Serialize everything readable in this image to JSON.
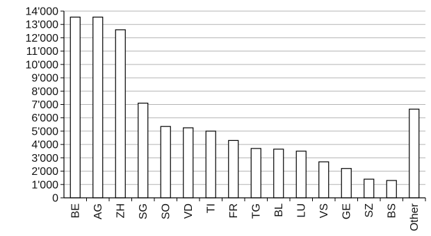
{
  "chart_data": {
    "type": "bar",
    "title": "",
    "xlabel": "",
    "ylabel": "",
    "categories": [
      "BE",
      "AG",
      "ZH",
      "SG",
      "SO",
      "VD",
      "TI",
      "FR",
      "TG",
      "BL",
      "LU",
      "VS",
      "GE",
      "SZ",
      "BS",
      "Other"
    ],
    "values": [
      13550,
      13550,
      12600,
      7100,
      5350,
      5250,
      5000,
      4300,
      3700,
      3650,
      3500,
      2700,
      2200,
      1400,
      1300,
      6650
    ],
    "ylim": [
      0,
      14000
    ],
    "yticks": [
      0,
      1000,
      2000,
      3000,
      4000,
      5000,
      6000,
      7000,
      8000,
      9000,
      10000,
      11000,
      12000,
      13000,
      14000
    ],
    "ytick_labels": [
      "0",
      "1'000",
      "2'000",
      "3'000",
      "4'000",
      "5'000",
      "6'000",
      "7'000",
      "8'000",
      "9'000",
      "10'000",
      "11'000",
      "12'000",
      "13'000",
      "14'000"
    ],
    "grid": true,
    "legend": "none",
    "bar_fill": "#ffffff",
    "bar_stroke": "#000000",
    "grid_color": "#b3b3b3"
  }
}
